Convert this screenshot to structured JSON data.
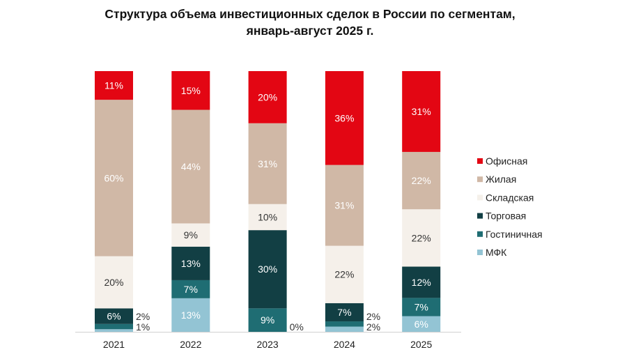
{
  "chart_data": {
    "type": "bar",
    "stacked": true,
    "title_line1": "Структура объема инвестиционных сделок в России по сегментам,",
    "title_line2": "январь-август 2025 г.",
    "xlabel": "",
    "ylabel": "",
    "ylim": [
      0,
      100
    ],
    "unit": "%",
    "grid": false,
    "legend_position": "right",
    "categories": [
      "2021",
      "2022",
      "2023",
      "2024",
      "2025"
    ],
    "series": [
      {
        "name": "МФК",
        "color": "#93c4d4",
        "values": [
          1,
          13,
          0,
          2,
          6
        ]
      },
      {
        "name": "Гостиничная",
        "color": "#1f6d73",
        "values": [
          2,
          7,
          9,
          2,
          7
        ]
      },
      {
        "name": "Торговая",
        "color": "#123f44",
        "values": [
          6,
          13,
          30,
          7,
          12
        ]
      },
      {
        "name": "Складская",
        "color": "#f5f0ea",
        "values": [
          20,
          9,
          10,
          22,
          22
        ]
      },
      {
        "name": "Жилая",
        "color": "#d0b8a6",
        "values": [
          60,
          44,
          31,
          31,
          22
        ]
      },
      {
        "name": "Офисная",
        "color": "#e30613",
        "values": [
          11,
          15,
          20,
          36,
          31
        ]
      }
    ],
    "legend_order": [
      "Офисная",
      "Жилая",
      "Складская",
      "Торговая",
      "Гостиничная",
      "МФК"
    ]
  }
}
